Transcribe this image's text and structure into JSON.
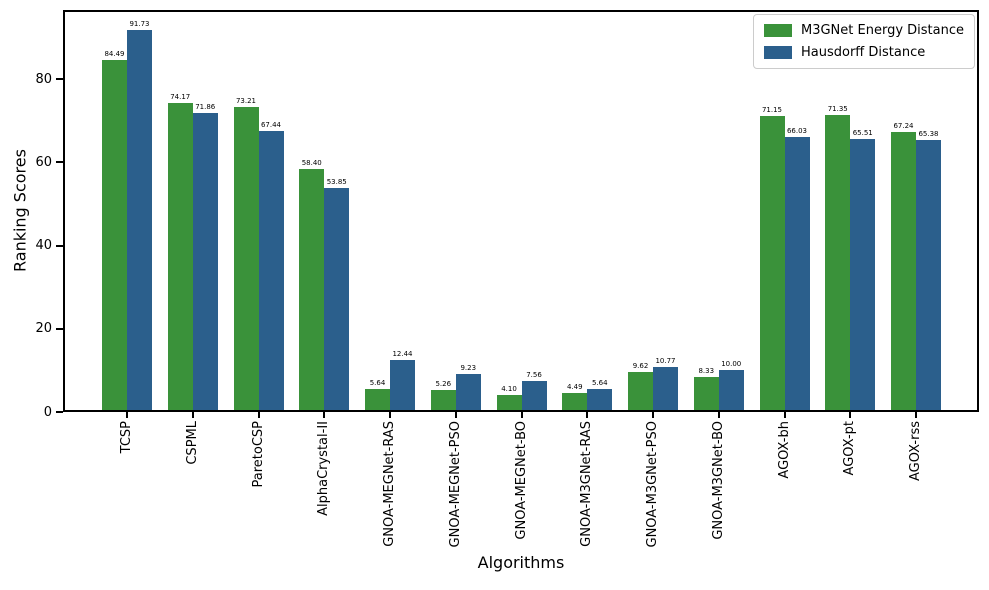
{
  "chart_data": {
    "type": "bar",
    "title": "",
    "xlabel": "Algorithms",
    "ylabel": "Ranking Scores",
    "categories": [
      "TCSP",
      "CSPML",
      "ParetoCSP",
      "AlphaCrystal-II",
      "GNOA-MEGNet-RAS",
      "GNOA-MEGNet-PSO",
      "GNOA-MEGNet-BO",
      "GNOA-M3GNet-RAS",
      "GNOA-M3GNet-PSO",
      "GNOA-M3GNet-BO",
      "AGOX-bh",
      "AGOX-pt",
      "AGOX-rss"
    ],
    "series": [
      {
        "name": "M3GNet Energy Distance",
        "color": "#3a923a",
        "values": [
          84.49,
          74.17,
          73.21,
          58.4,
          5.64,
          5.26,
          4.1,
          4.49,
          9.62,
          8.33,
          71.15,
          71.35,
          67.24
        ]
      },
      {
        "name": "Hausdorff Distance",
        "color": "#2b5f8c",
        "values": [
          91.73,
          71.86,
          67.44,
          53.85,
          12.44,
          9.23,
          7.56,
          5.64,
          10.77,
          10.0,
          66.03,
          65.51,
          65.38
        ]
      }
    ],
    "yticks": [
      0,
      20,
      40,
      60,
      80
    ],
    "ylim": [
      0,
      96.6
    ],
    "grid": false,
    "legend_position": "upper right",
    "bar_value_labels": true,
    "value_label_decimals": 2
  }
}
